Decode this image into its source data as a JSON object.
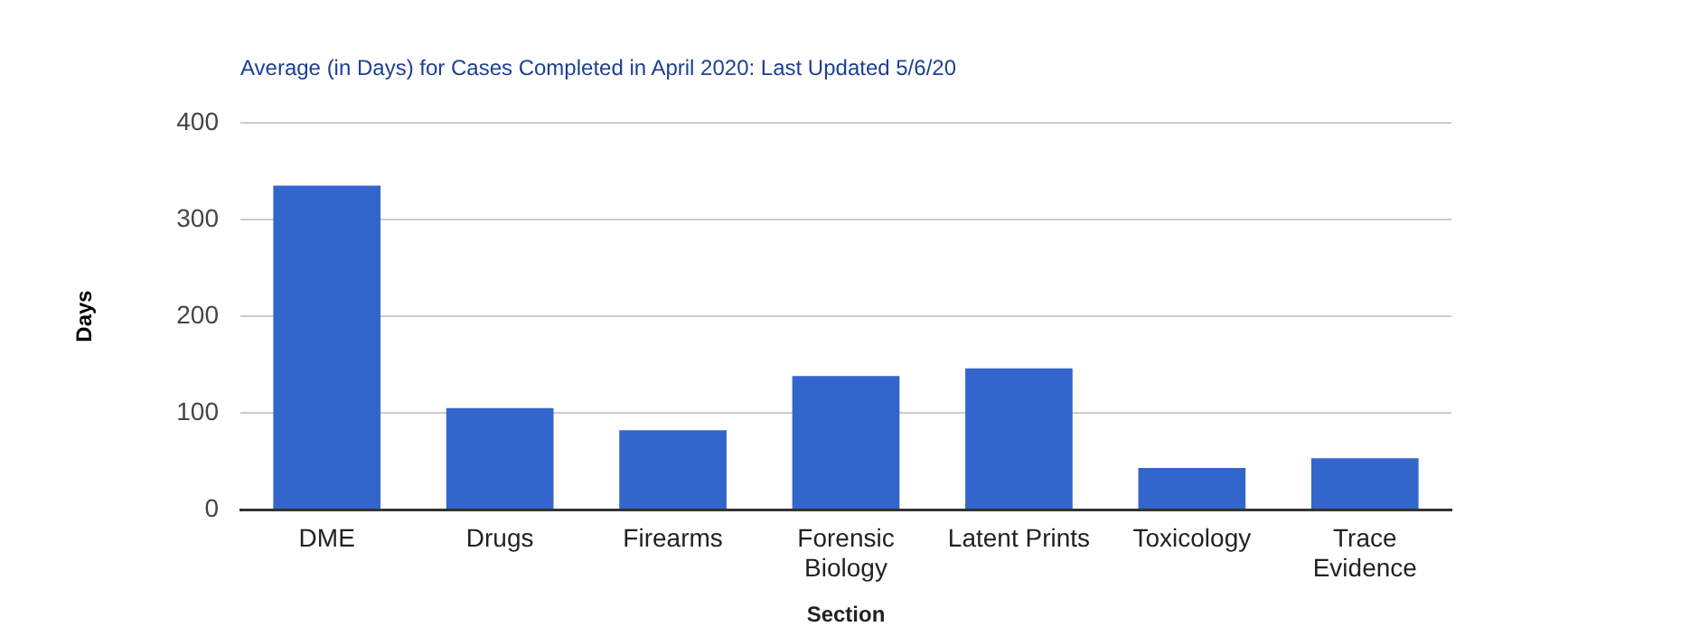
{
  "chart_data": {
    "type": "bar",
    "title": "Average (in Days) for Cases Completed in April 2020: Last Updated 5/6/20",
    "xlabel": "Section",
    "ylabel": "Days",
    "categories": [
      "DME",
      "Drugs",
      "Firearms",
      "Forensic Biology",
      "Latent Prints",
      "Toxicology",
      "Trace Evidence"
    ],
    "values": [
      335,
      105,
      82,
      138,
      146,
      43,
      53
    ],
    "color": "#3366cc",
    "ylim": [
      0,
      400
    ],
    "yticks": [
      0,
      100,
      200,
      300,
      400
    ],
    "grid": "y",
    "legend": false
  }
}
